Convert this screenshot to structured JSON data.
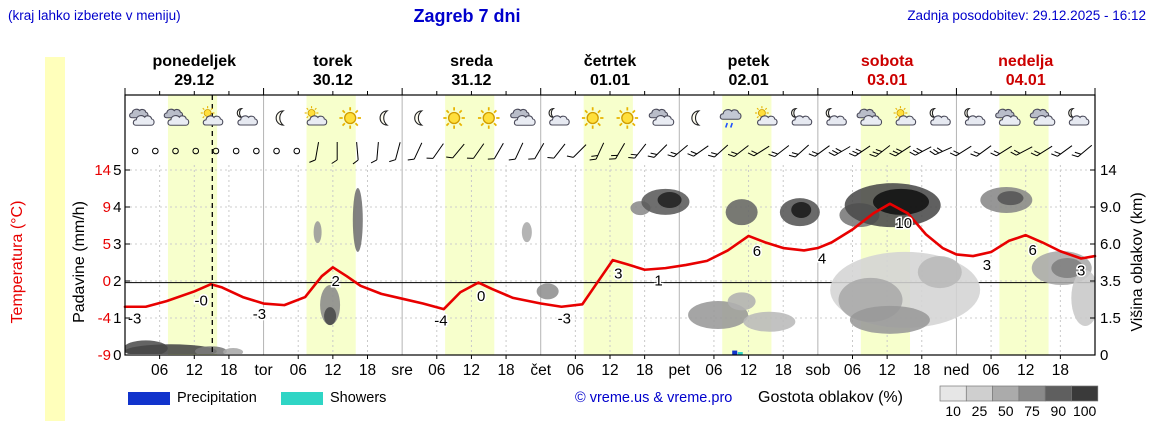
{
  "header": {
    "hint": "(kraj lahko izberete v meniju)",
    "title": "Zagreb 7 dni",
    "updated": "Zadnja posodobitev: 29.12.2025 - 16:12"
  },
  "colors": {
    "accent_blue": "#0000cc",
    "temp_red": "#e80000",
    "band": "#f7ffcc",
    "weekend_red": "#cc0000"
  },
  "days": [
    {
      "name": "ponedeljek",
      "date": "29.12",
      "weekend": false
    },
    {
      "name": "torek",
      "date": "30.12",
      "weekend": false
    },
    {
      "name": "sreda",
      "date": "31.12",
      "weekend": false
    },
    {
      "name": "četrtek",
      "date": "01.01",
      "weekend": false
    },
    {
      "name": "petek",
      "date": "02.01",
      "weekend": false
    },
    {
      "name": "sobota",
      "date": "03.01",
      "weekend": true
    },
    {
      "name": "nedelja",
      "date": "04.01",
      "weekend": true
    }
  ],
  "axes": {
    "left_temp": {
      "label": "Temperatura (°C)",
      "ticks": [
        "14",
        "9",
        "5",
        "0",
        "-4",
        "-9"
      ]
    },
    "left_precip": {
      "label": "Padavine (mm/h)",
      "ticks": [
        "5",
        "4",
        "3",
        "2",
        "1",
        "0"
      ]
    },
    "right": {
      "label": "Višina oblakov (km)",
      "ticks": [
        "14",
        "9.0",
        "6.0",
        "3.5",
        "1.5",
        "0"
      ]
    },
    "bottom": [
      {
        "t": 0.25,
        "l": "06"
      },
      {
        "t": 0.5,
        "l": "12"
      },
      {
        "t": 0.75,
        "l": "18"
      },
      {
        "t": 1,
        "l": "tor"
      },
      {
        "t": 1.25,
        "l": "06"
      },
      {
        "t": 1.5,
        "l": "12"
      },
      {
        "t": 1.75,
        "l": "18"
      },
      {
        "t": 2,
        "l": "sre"
      },
      {
        "t": 2.25,
        "l": "06"
      },
      {
        "t": 2.5,
        "l": "12"
      },
      {
        "t": 2.75,
        "l": "18"
      },
      {
        "t": 3,
        "l": "čet"
      },
      {
        "t": 3.25,
        "l": "06"
      },
      {
        "t": 3.5,
        "l": "12"
      },
      {
        "t": 3.75,
        "l": "18"
      },
      {
        "t": 4,
        "l": "pet"
      },
      {
        "t": 4.25,
        "l": "06"
      },
      {
        "t": 4.5,
        "l": "12"
      },
      {
        "t": 4.75,
        "l": "18"
      },
      {
        "t": 5,
        "l": "sob"
      },
      {
        "t": 5.25,
        "l": "06"
      },
      {
        "t": 5.5,
        "l": "12"
      },
      {
        "t": 5.75,
        "l": "18"
      },
      {
        "t": 6,
        "l": "ned"
      },
      {
        "t": 6.25,
        "l": "06"
      },
      {
        "t": 6.5,
        "l": "12"
      },
      {
        "t": 6.75,
        "l": "18"
      }
    ]
  },
  "legend": {
    "precipitation": "Precipitation",
    "showers": "Showers",
    "credit": "© vreme.us & vreme.pro",
    "cloud_density": "Gostota oblakov (%)",
    "density_ticks": [
      "10",
      "25",
      "50",
      "75",
      "90",
      "100"
    ],
    "density_grays": [
      "#e6e6e6",
      "#cfcfcf",
      "#ababab",
      "#8a8a8a",
      "#5f5f5f",
      "#3a3a3a"
    ],
    "colors": {
      "precipitation": "#1133cc",
      "showers": "#2fd5c5"
    }
  },
  "chart_data": {
    "type": "line",
    "title": "Zagreb 7 dni (meteogram)",
    "x_unit": "days from Monday 29.12 00:00",
    "temp_axis_range": [
      -9,
      14
    ],
    "precip_axis_range": [
      0,
      5
    ],
    "cloud_height_axis_km": [
      0,
      1.5,
      3.5,
      6.0,
      9.0,
      14
    ],
    "daylight": [
      0.31,
      0.665
    ],
    "now_t": 0.63,
    "temperature": {
      "x": [
        0,
        0.15,
        0.3,
        0.5,
        0.62,
        0.7,
        0.85,
        1.0,
        1.15,
        1.3,
        1.42,
        1.5,
        1.6,
        1.7,
        1.85,
        2.0,
        2.15,
        2.3,
        2.42,
        2.55,
        2.65,
        2.8,
        3.0,
        3.15,
        3.3,
        3.42,
        3.52,
        3.62,
        3.75,
        3.9,
        4.05,
        4.2,
        4.35,
        4.5,
        4.62,
        4.75,
        4.9,
        5.0,
        5.1,
        5.25,
        5.4,
        5.52,
        5.65,
        5.78,
        5.9,
        6.0,
        6.12,
        6.25,
        6.38,
        6.5,
        6.62,
        6.75,
        6.9,
        7.0
      ],
      "y": [
        -3,
        -3,
        -2.3,
        -1.1,
        -0.2,
        -0.6,
        -1.8,
        -2.6,
        -2.8,
        -1.8,
        0.8,
        1.9,
        0.8,
        -0.4,
        -1.4,
        -2.0,
        -2.6,
        -3.3,
        -1.2,
        0.0,
        -0.8,
        -1.9,
        -2.6,
        -3.0,
        -2.7,
        0.3,
        2.8,
        2.3,
        1.6,
        1.8,
        2.2,
        2.7,
        4.0,
        5.8,
        5.0,
        4.3,
        4.0,
        4.3,
        5.0,
        6.6,
        8.6,
        9.8,
        8.6,
        6.0,
        4.3,
        3.5,
        3.3,
        3.8,
        5.2,
        5.9,
        5.0,
        3.9,
        3.0,
        3.3
      ]
    },
    "temp_labels": [
      {
        "t": 0.07,
        "v": "-3"
      },
      {
        "t": 0.55,
        "v": "-0"
      },
      {
        "t": 0.97,
        "v": "-3"
      },
      {
        "t": 1.52,
        "v": "2"
      },
      {
        "t": 2.28,
        "v": "-4"
      },
      {
        "t": 2.57,
        "v": "0"
      },
      {
        "t": 3.17,
        "v": "-3"
      },
      {
        "t": 3.56,
        "v": "3"
      },
      {
        "t": 3.85,
        "v": "1"
      },
      {
        "t": 4.56,
        "v": "6"
      },
      {
        "t": 5.03,
        "v": "4"
      },
      {
        "t": 5.62,
        "v": "10"
      },
      {
        "t": 6.22,
        "v": "3"
      },
      {
        "t": 6.55,
        "v": "6"
      },
      {
        "t": 6.9,
        "v": "3"
      }
    ],
    "precip_bars": [
      {
        "t": 4.4,
        "h": 0.12,
        "color": "#1133cc"
      },
      {
        "t": 4.44,
        "h": 0.08,
        "color": "#2fd5c5"
      }
    ],
    "clouds": [
      {
        "t": 0.15,
        "u": 0.18,
        "rx": 22,
        "ry": 8,
        "f": "#4f4f4f"
      },
      {
        "t": 0.33,
        "u": 0.1,
        "rx": 46,
        "ry": 7,
        "f": "#454545"
      },
      {
        "t": 0.62,
        "u": 0.1,
        "rx": 16,
        "ry": 5,
        "f": "#7a7a7a"
      },
      {
        "t": 0.78,
        "u": 0.08,
        "rx": 10,
        "ry": 4,
        "f": "#a8a8a8"
      },
      {
        "t": 1.39,
        "u": 3.32,
        "rx": 4,
        "ry": 11,
        "f": "#9a9a9a"
      },
      {
        "t": 1.48,
        "u": 1.35,
        "rx": 10,
        "ry": 20,
        "f": "#8a8a8a"
      },
      {
        "t": 1.48,
        "u": 1.05,
        "rx": 6,
        "ry": 9,
        "f": "#4a4a4a"
      },
      {
        "t": 1.68,
        "u": 3.65,
        "rx": 5,
        "ry": 32,
        "f": "#6f6f6f"
      },
      {
        "t": 2.9,
        "u": 3.32,
        "rx": 5,
        "ry": 10,
        "f": "#aaaaaa"
      },
      {
        "t": 3.05,
        "u": 1.72,
        "rx": 11,
        "ry": 8,
        "f": "#909090"
      },
      {
        "t": 3.72,
        "u": 3.97,
        "rx": 10,
        "ry": 7,
        "f": "#8a8a8a"
      },
      {
        "t": 3.9,
        "u": 4.14,
        "rx": 24,
        "ry": 13,
        "f": "#5a5a5a"
      },
      {
        "t": 3.93,
        "u": 4.19,
        "rx": 12,
        "ry": 8,
        "f": "#222222"
      },
      {
        "t": 4.28,
        "u": 1.08,
        "rx": 30,
        "ry": 14,
        "f": "#989898"
      },
      {
        "t": 4.45,
        "u": 1.45,
        "rx": 14,
        "ry": 9,
        "f": "#b0b0b0"
      },
      {
        "t": 4.45,
        "u": 3.86,
        "rx": 16,
        "ry": 13,
        "f": "#666666"
      },
      {
        "t": 4.65,
        "u": 0.9,
        "rx": 26,
        "ry": 10,
        "f": "#bababa"
      },
      {
        "t": 4.87,
        "u": 3.86,
        "rx": 20,
        "ry": 14,
        "f": "#555555"
      },
      {
        "t": 4.88,
        "u": 3.92,
        "rx": 10,
        "ry": 8,
        "f": "#1a1a1a"
      },
      {
        "t": 5.3,
        "u": 3.78,
        "rx": 20,
        "ry": 12,
        "f": "#777777"
      },
      {
        "t": 5.63,
        "u": 1.76,
        "rx": 75,
        "ry": 38,
        "f": "#d4d4d4"
      },
      {
        "t": 5.38,
        "u": 1.49,
        "rx": 32,
        "ry": 22,
        "f": "#a8a8a8"
      },
      {
        "t": 5.88,
        "u": 2.24,
        "rx": 22,
        "ry": 16,
        "f": "#b8b8b8"
      },
      {
        "t": 5.52,
        "u": 0.95,
        "rx": 40,
        "ry": 14,
        "f": "#999999"
      },
      {
        "t": 5.54,
        "u": 4.05,
        "rx": 48,
        "ry": 22,
        "f": "#4a4a4a"
      },
      {
        "t": 5.6,
        "u": 4.14,
        "rx": 28,
        "ry": 13,
        "f": "#111111"
      },
      {
        "t": 6.36,
        "u": 4.19,
        "rx": 26,
        "ry": 13,
        "f": "#888888"
      },
      {
        "t": 6.39,
        "u": 4.24,
        "rx": 13,
        "ry": 7,
        "f": "#555555"
      },
      {
        "t": 6.76,
        "u": 2.35,
        "rx": 30,
        "ry": 17,
        "f": "#a8a8a8"
      },
      {
        "t": 6.8,
        "u": 2.35,
        "rx": 16,
        "ry": 10,
        "f": "#808080"
      },
      {
        "t": 6.93,
        "u": 1.54,
        "rx": 14,
        "ry": 28,
        "f": "#c8c8c8"
      }
    ],
    "icons": [
      "clouds",
      "clouds",
      "sun-cloud",
      "moon-cloud",
      "moon",
      "sun-cloud",
      "sun",
      "moon",
      "moon",
      "sun",
      "sun",
      "clouds",
      "moon-cloud",
      "sun",
      "sun",
      "clouds",
      "moon",
      "cloud-rain",
      "sun-cloud",
      "moon-cloud",
      "moon-cloud",
      "clouds",
      "sun-cloud",
      "moon-cloud",
      "moon-cloud",
      "clouds",
      "clouds",
      "moon-cloud"
    ],
    "winds": [
      {
        "c": 1
      },
      {
        "c": 1
      },
      {
        "c": 1
      },
      {
        "c": 1
      },
      {
        "c": 1
      },
      {
        "c": 1
      },
      {
        "c": 1
      },
      {
        "c": 1
      },
      {
        "c": 1
      },
      {
        "d": 190,
        "k": 1
      },
      {
        "d": 180,
        "k": 1
      },
      {
        "d": 175,
        "k": 1
      },
      {
        "d": 185,
        "k": 1
      },
      {
        "d": 195,
        "k": 1
      },
      {
        "d": 205,
        "k": 1
      },
      {
        "d": 215,
        "k": 1
      },
      {
        "d": 220,
        "k": 1
      },
      {
        "d": 215,
        "k": 1
      },
      {
        "d": 210,
        "k": 1
      },
      {
        "d": 205,
        "k": 1
      },
      {
        "d": 210,
        "k": 1
      },
      {
        "d": 218,
        "k": 1
      },
      {
        "d": 225,
        "k": 1
      },
      {
        "d": 205,
        "k": 2
      },
      {
        "d": 210,
        "k": 2
      },
      {
        "d": 218,
        "k": 2
      },
      {
        "d": 225,
        "k": 2
      },
      {
        "d": 230,
        "k": 2
      },
      {
        "d": 235,
        "k": 2
      },
      {
        "d": 228,
        "k": 2
      },
      {
        "d": 232,
        "k": 2
      },
      {
        "d": 238,
        "k": 2
      },
      {
        "d": 232,
        "k": 2
      },
      {
        "d": 228,
        "k": 2
      },
      {
        "d": 234,
        "k": 2
      },
      {
        "d": 240,
        "k": 3
      },
      {
        "d": 236,
        "k": 3
      },
      {
        "d": 232,
        "k": 3
      },
      {
        "d": 237,
        "k": 3
      },
      {
        "d": 242,
        "k": 3
      },
      {
        "d": 246,
        "k": 3
      },
      {
        "d": 238,
        "k": 2
      },
      {
        "d": 234,
        "k": 2
      },
      {
        "d": 238,
        "k": 2
      },
      {
        "d": 242,
        "k": 2
      },
      {
        "d": 238,
        "k": 2
      },
      {
        "d": 234,
        "k": 2
      },
      {
        "d": 230,
        "k": 2
      }
    ]
  }
}
